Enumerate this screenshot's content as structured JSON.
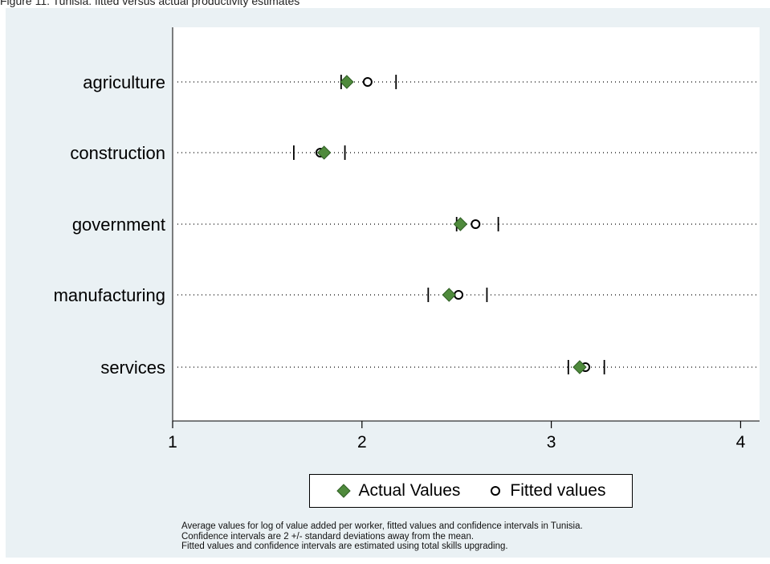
{
  "figure_title": "Figure 11: Tunisia: fitted versus actual productivity estimates",
  "colors": {
    "actual_marker": "#4f8a3c",
    "actual_marker_edge": "#2f5e24",
    "fitted_marker": "#000000",
    "background": "#eaf1f4",
    "plot_area": "#ffffff"
  },
  "legend": {
    "actual": "Actual Values",
    "fitted": "Fitted values"
  },
  "notes": [
    "Average values for log of value added per worker, fitted values and confidence intervals in Tunisia.",
    "Confidence intervals are 2 +/- standard deviations away from the mean.",
    "Fitted values and confidence intervals are estimated using total skills upgrading."
  ],
  "chart_data": {
    "type": "scatter",
    "orientation": "horizontal-dot-plot",
    "categories": [
      "agriculture",
      "construction",
      "government",
      "manufacturing",
      "services"
    ],
    "series": [
      {
        "name": "Actual Values",
        "marker": "diamond",
        "values": [
          1.92,
          1.8,
          2.52,
          2.46,
          3.15
        ]
      },
      {
        "name": "Fitted values",
        "marker": "hollow-circle",
        "values": [
          2.03,
          1.78,
          2.6,
          2.51,
          3.18
        ]
      }
    ],
    "ci_lower": [
      1.89,
      1.64,
      2.5,
      2.35,
      3.09
    ],
    "ci_upper": [
      2.18,
      1.91,
      2.72,
      2.66,
      3.28
    ],
    "xlim": [
      1,
      4.1
    ],
    "xticks": [
      "1",
      "2",
      "3",
      "4"
    ],
    "grid": "dotted horizontal lines per category",
    "legend_position": "bottom"
  }
}
